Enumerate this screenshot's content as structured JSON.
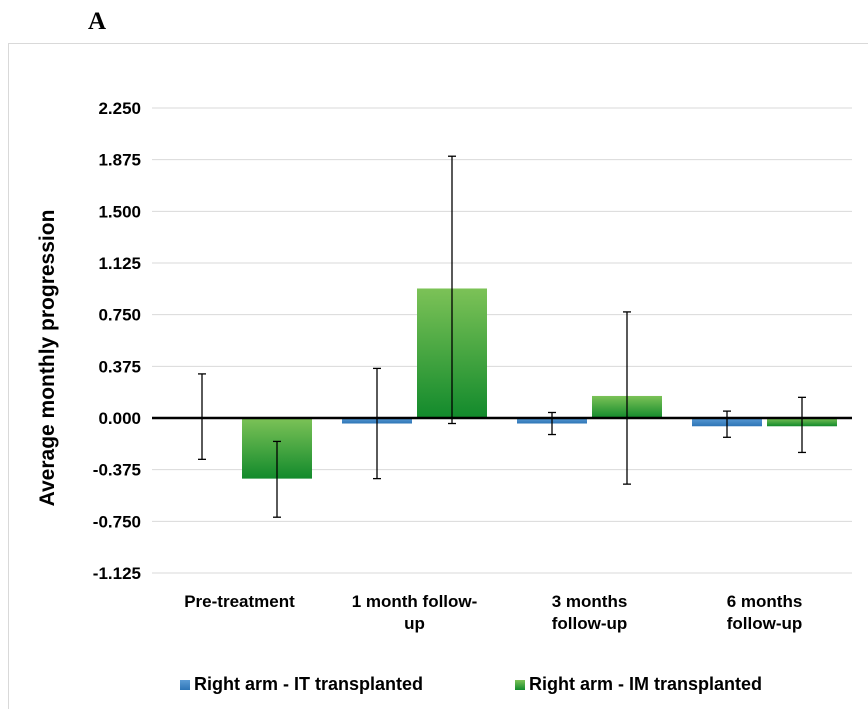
{
  "panel_label": "A",
  "colors": {
    "series_1_top": "#5b9bd5",
    "series_1_bottom": "#2e75b6",
    "series_2_top": "#7cc257",
    "series_2_bottom": "#128a2c",
    "gridline": "#d9d9d9",
    "axis": "#000000"
  },
  "chart_data": {
    "type": "bar",
    "title": "",
    "xlabel": "",
    "ylabel": "Average monthly progression",
    "ylim": [
      -1.125,
      2.25
    ],
    "yticks": [
      "2.250",
      "1.875",
      "1.500",
      "1.125",
      "0.750",
      "0.375",
      "0.000",
      "-0.375",
      "-0.750",
      "-1.125"
    ],
    "categories": [
      [
        "Pre-treatment"
      ],
      [
        "1 month follow-",
        "up"
      ],
      [
        "3 months",
        "follow-up"
      ],
      [
        "6 months",
        "follow-up"
      ]
    ],
    "series": [
      {
        "name": "Right arm - IT transplanted",
        "values": [
          0.0,
          -0.04,
          -0.04,
          -0.06
        ],
        "error_low": [
          -0.3,
          -0.44,
          -0.12,
          -0.14
        ],
        "error_high": [
          0.32,
          0.36,
          0.04,
          0.05
        ]
      },
      {
        "name": "Right arm - IM transplanted",
        "values": [
          -0.44,
          0.94,
          0.16,
          -0.06
        ],
        "error_low": [
          -0.72,
          -0.04,
          -0.48,
          -0.25
        ],
        "error_high": [
          -0.17,
          1.9,
          0.77,
          0.15
        ]
      }
    ],
    "grid": true,
    "legend_position": "bottom"
  }
}
